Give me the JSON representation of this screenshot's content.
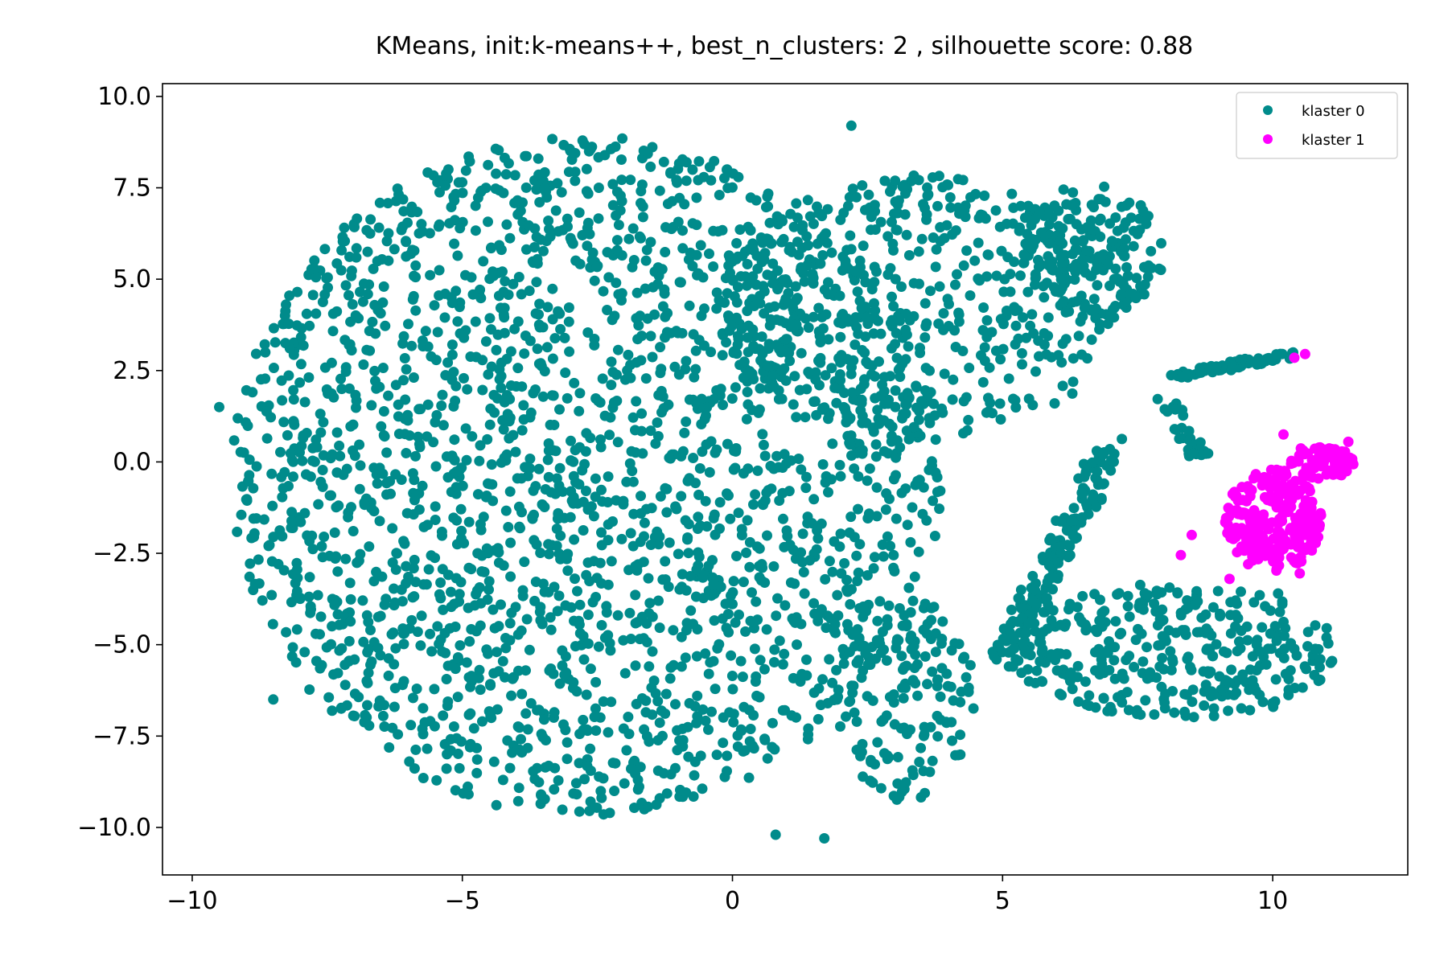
{
  "chart_data": {
    "type": "scatter",
    "title": "KMeans, init:k-means++,  best_n_clusters: 2 , silhouette score: 0.88",
    "xlabel": "",
    "ylabel": "",
    "xlim": [
      -10.55,
      12.5
    ],
    "ylim": [
      -11.3,
      10.35
    ],
    "xticks": [
      -10,
      -5,
      0,
      5,
      10
    ],
    "xtick_labels": [
      "−10",
      "−5",
      "0",
      "5",
      "10"
    ],
    "yticks": [
      10.0,
      7.5,
      5.0,
      2.5,
      0.0,
      -2.5,
      -5.0,
      -7.5,
      -10.0
    ],
    "ytick_labels": [
      "10.0",
      "7.5",
      "5.0",
      "2.5",
      "0.0",
      "−2.5",
      "−5.0",
      "−7.5",
      "−10.0"
    ],
    "grid": false,
    "legend_position": "top-right",
    "series": [
      {
        "name": "klaster 0",
        "color": "#008b8b",
        "regions": [
          {
            "shape": "ellipse",
            "cx": -2.7,
            "cy": -0.4,
            "rx": 6.6,
            "ry": 9.3,
            "count": 2200
          },
          {
            "shape": "ellipse",
            "cx": 3.5,
            "cy": 4.3,
            "rx": 3.8,
            "ry": 3.6,
            "count": 520
          },
          {
            "shape": "ellipse",
            "cx": 6.6,
            "cy": 5.8,
            "rx": 1.4,
            "ry": 1.8,
            "count": 160
          },
          {
            "shape": "ellipse",
            "cx": 8.2,
            "cy": -5.2,
            "rx": 3.0,
            "ry": 1.9,
            "count": 330
          },
          {
            "shape": "ellipse",
            "cx": 3.2,
            "cy": -6.5,
            "rx": 1.3,
            "ry": 2.8,
            "count": 150
          },
          {
            "shape": "band",
            "x": [
              5.0,
              7.0
            ],
            "y": [
              -5.5,
              0.5
            ],
            "width": 0.55,
            "count": 170
          },
          {
            "shape": "band",
            "x": [
              8.0,
              10.4
            ],
            "y": [
              2.3,
              2.95
            ],
            "width": 0.2,
            "count": 70
          },
          {
            "shape": "band",
            "x": [
              8.0,
              8.7
            ],
            "y": [
              1.8,
              0.0
            ],
            "width": 0.35,
            "count": 30
          }
        ],
        "points": [
          {
            "x": -9.5,
            "y": 1.5
          },
          {
            "x": -8.5,
            "y": -6.5
          },
          {
            "x": 2.2,
            "y": 9.2
          },
          {
            "x": 0.8,
            "y": -10.2
          },
          {
            "x": 1.7,
            "y": -10.3
          },
          {
            "x": 10.1,
            "y": -3.6
          },
          {
            "x": 2.3,
            "y": -5.5
          },
          {
            "x": 3.6,
            "y": -4.7
          }
        ]
      },
      {
        "name": "klaster 1",
        "color": "#ff00ff",
        "regions": [
          {
            "shape": "ellipse",
            "cx": 10.0,
            "cy": -1.6,
            "rx": 0.9,
            "ry": 1.4,
            "count": 260
          },
          {
            "shape": "ellipse",
            "cx": 10.9,
            "cy": 0.0,
            "rx": 0.6,
            "ry": 0.5,
            "count": 80
          }
        ],
        "points": [
          {
            "x": 10.6,
            "y": 2.95
          },
          {
            "x": 10.4,
            "y": 2.85
          },
          {
            "x": 10.2,
            "y": 0.75
          },
          {
            "x": 11.4,
            "y": 0.55
          },
          {
            "x": 8.3,
            "y": -2.55
          },
          {
            "x": 8.5,
            "y": -2.0
          },
          {
            "x": 10.5,
            "y": -3.05
          },
          {
            "x": 9.2,
            "y": -3.2
          }
        ]
      }
    ]
  }
}
